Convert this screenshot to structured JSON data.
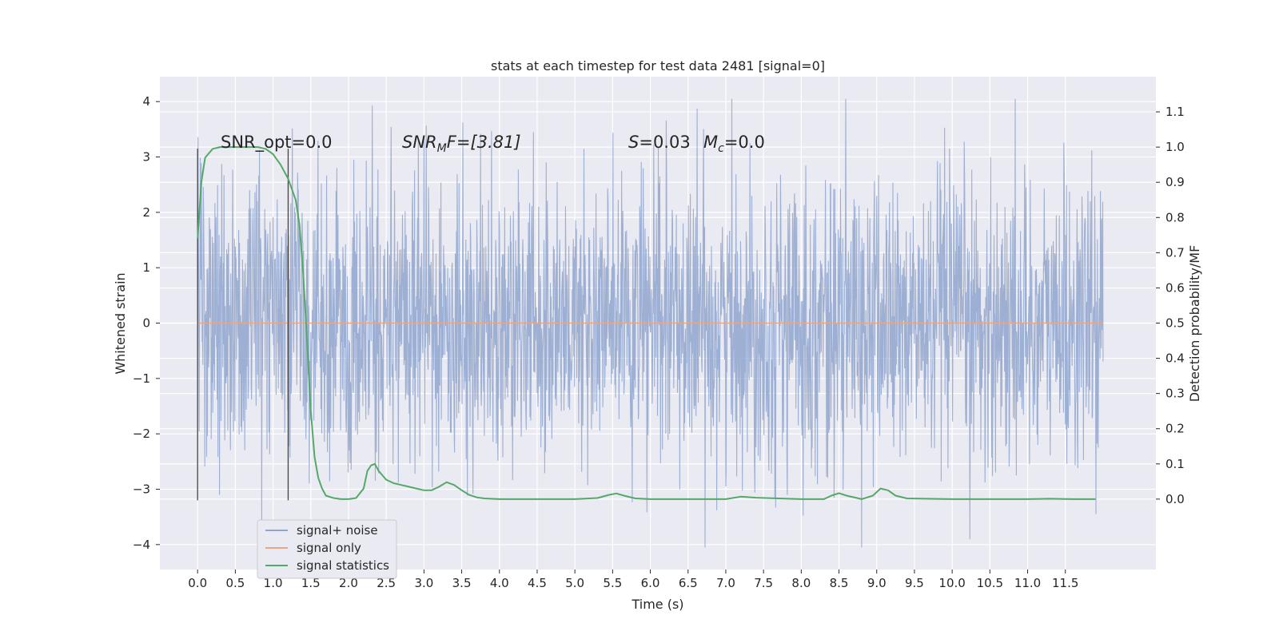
{
  "chart_data": {
    "type": "line",
    "title": "stats at each timestep for test data 2481 [signal=0]",
    "xlabel": "Time (s)",
    "ylabel": "Whitened strain",
    "ylabel_right": "Detection probability/MF",
    "xlim": [
      -0.5,
      12.7
    ],
    "ylim": [
      -4.45,
      4.45
    ],
    "ylim_right": [
      -0.2,
      1.2
    ],
    "x_ticks": [
      0.0,
      0.5,
      1.0,
      1.5,
      2.0,
      2.5,
      3.0,
      3.5,
      4.0,
      4.5,
      5.0,
      5.5,
      6.0,
      6.5,
      7.0,
      7.5,
      8.0,
      8.5,
      9.0,
      9.5,
      10.0,
      10.5,
      11.0,
      11.5
    ],
    "x_tick_labels": [
      "0.0",
      "0.5",
      "1.0",
      "1.5",
      "2.0",
      "2.5",
      "3.0",
      "3.5",
      "4.0",
      "4.5",
      "5.0",
      "5.5",
      "6.0",
      "6.5",
      "7.0",
      "7.5",
      "8.0",
      "8.5",
      "9.0",
      "9.5",
      "10.0",
      "10.5",
      "11.0",
      "11.5"
    ],
    "y_ticks": [
      -4,
      -3,
      -2,
      -1,
      0,
      1,
      2,
      3,
      4
    ],
    "y_tick_labels": [
      "−4",
      "−3",
      "−2",
      "−1",
      "0",
      "1",
      "2",
      "3",
      "4"
    ],
    "y_right_ticks": [
      0.0,
      0.1,
      0.2,
      0.3,
      0.4,
      0.5,
      0.6,
      0.7,
      0.8,
      0.9,
      1.0,
      1.1
    ],
    "y_right_tick_labels": [
      "0.0",
      "0.1",
      "0.2",
      "0.3",
      "0.4",
      "0.5",
      "0.6",
      "0.7",
      "0.8",
      "0.9",
      "1.0",
      "1.1"
    ],
    "grid": true,
    "legend_position": "bottom-left",
    "vertical_markers": [
      0.0,
      1.2
    ],
    "annotations": {
      "snr_opt": "SNR_opt=0.0",
      "snr_mf_main": "SNR",
      "snr_mf_sub": "M",
      "snr_mf_tail": "F=[3.81]",
      "s_main": "S",
      "s_tail": "=0.03",
      "mc_main": "M",
      "mc_sub": "c",
      "mc_tail": "=0.0"
    },
    "series": [
      {
        "name": "signal+ noise",
        "color": "#8fa5cd",
        "axis": "left",
        "x_start": 0.0,
        "x_end": 12.0,
        "typical_amplitude": 1.3,
        "peak_amplitude": 4.05
      },
      {
        "name": "signal only",
        "color": "#e8a784",
        "axis": "left",
        "x": [
          0.0,
          12.0
        ],
        "y": [
          0.0,
          0.0
        ]
      },
      {
        "name": "signal statistics",
        "color": "#55a868",
        "axis": "right",
        "x": [
          0.0,
          0.05,
          0.1,
          0.2,
          0.3,
          0.5,
          0.7,
          0.8,
          0.9,
          1.0,
          1.1,
          1.2,
          1.3,
          1.35,
          1.4,
          1.45,
          1.5,
          1.55,
          1.6,
          1.65,
          1.7,
          1.8,
          1.9,
          2.0,
          2.1,
          2.2,
          2.25,
          2.3,
          2.35,
          2.4,
          2.5,
          2.6,
          2.7,
          2.8,
          2.9,
          3.0,
          3.1,
          3.2,
          3.3,
          3.4,
          3.5,
          3.6,
          3.7,
          3.8,
          4.0,
          4.5,
          5.0,
          5.3,
          5.45,
          5.55,
          5.65,
          5.8,
          6.0,
          6.5,
          7.0,
          7.2,
          7.4,
          8.0,
          8.3,
          8.4,
          8.5,
          8.6,
          8.8,
          8.95,
          9.05,
          9.15,
          9.25,
          9.4,
          10.0,
          11.0,
          11.3,
          11.6,
          11.9
        ],
        "y": [
          0.74,
          0.9,
          0.97,
          0.995,
          1.0,
          1.0,
          1.0,
          1.0,
          0.995,
          0.98,
          0.95,
          0.91,
          0.85,
          0.78,
          0.64,
          0.45,
          0.25,
          0.12,
          0.06,
          0.03,
          0.01,
          0.003,
          0.0,
          0.0,
          0.003,
          0.03,
          0.08,
          0.096,
          0.1,
          0.08,
          0.055,
          0.045,
          0.04,
          0.035,
          0.03,
          0.025,
          0.025,
          0.035,
          0.048,
          0.04,
          0.025,
          0.012,
          0.005,
          0.002,
          0.0,
          0.0,
          0.0,
          0.003,
          0.012,
          0.016,
          0.01,
          0.002,
          0.0,
          0.0,
          0.0,
          0.007,
          0.004,
          0.0,
          0.0,
          0.01,
          0.017,
          0.01,
          0.0,
          0.01,
          0.03,
          0.025,
          0.01,
          0.002,
          0.0,
          0.0,
          0.001,
          0.0,
          0.0
        ]
      }
    ]
  }
}
